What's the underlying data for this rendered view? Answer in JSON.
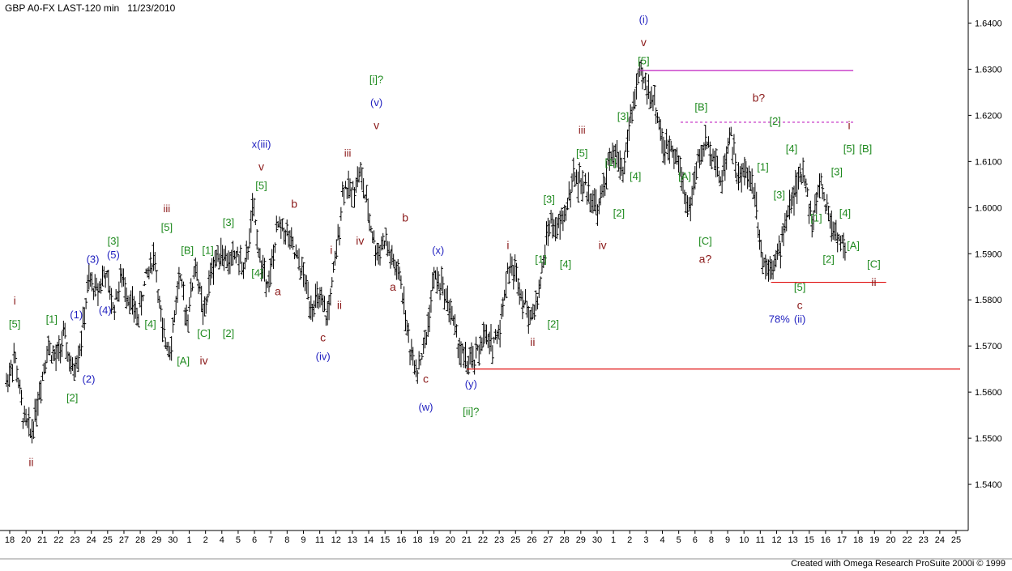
{
  "header": {
    "title": "GBP A0-FX LAST-120 min   11/23/2010"
  },
  "footer": {
    "credit": "Created with Omega Research ProSuite 2000i © 1999"
  },
  "colors": {
    "blue": "#1f1fbf",
    "green": "#1f8a1f",
    "darkred": "#8b1a1a",
    "red": "#e01010",
    "magenta": "#c020c0",
    "bars": "#000000"
  },
  "chart_data": {
    "type": "ohlc-bar",
    "symbol": "GBP A0-FX",
    "interval": "120 min",
    "date": "11/23/2010",
    "ylim": [
      1.53,
      1.645
    ],
    "y_ticks": [
      "1.6400",
      "1.6300",
      "1.6200",
      "1.6100",
      "1.6000",
      "1.5900",
      "1.5800",
      "1.5700",
      "1.5600",
      "1.5500",
      "1.5400"
    ],
    "x_ticks": [
      "18",
      "20",
      "21",
      "22",
      "23",
      "24",
      "25",
      "27",
      "28",
      "29",
      "30",
      "1",
      "2",
      "4",
      "5",
      "6",
      "7",
      "8",
      "9",
      "11",
      "12",
      "13",
      "14",
      "15",
      "16",
      "18",
      "19",
      "20",
      "21",
      "22",
      "23",
      "25",
      "26",
      "27",
      "28",
      "29",
      "30",
      "1",
      "2",
      "3",
      "4",
      "5",
      "6",
      "8",
      "9",
      "10",
      "11",
      "12",
      "13",
      "15",
      "16",
      "17",
      "18",
      "19",
      "20",
      "22",
      "23",
      "24",
      "25"
    ],
    "price_path": [
      [
        0,
        1.562
      ],
      [
        1,
        1.568
      ],
      [
        2,
        1.555
      ],
      [
        3,
        1.551
      ],
      [
        4,
        1.56
      ],
      [
        5,
        1.57
      ],
      [
        6,
        1.567
      ],
      [
        7,
        1.572
      ],
      [
        8,
        1.564
      ],
      [
        9,
        1.57
      ],
      [
        10,
        1.584
      ],
      [
        11,
        1.582
      ],
      [
        12,
        1.586
      ],
      [
        13,
        1.578
      ],
      [
        14,
        1.585
      ],
      [
        15,
        1.58
      ],
      [
        16,
        1.576
      ],
      [
        17,
        1.585
      ],
      [
        18,
        1.59
      ],
      [
        19,
        1.572
      ],
      [
        20,
        1.57
      ],
      [
        21,
        1.585
      ],
      [
        22,
        1.576
      ],
      [
        23,
        1.588
      ],
      [
        24,
        1.576
      ],
      [
        25,
        1.587
      ],
      [
        26,
        1.591
      ],
      [
        27,
        1.588
      ],
      [
        28,
        1.59
      ],
      [
        29,
        1.586
      ],
      [
        30,
        1.6
      ],
      [
        31,
        1.587
      ],
      [
        32,
        1.584
      ],
      [
        33,
        1.596
      ],
      [
        34,
        1.595
      ],
      [
        35,
        1.59
      ],
      [
        36,
        1.586
      ],
      [
        37,
        1.579
      ],
      [
        38,
        1.58
      ],
      [
        39,
        1.576
      ],
      [
        40,
        1.588
      ],
      [
        41,
        1.605
      ],
      [
        42,
        1.603
      ],
      [
        43,
        1.608
      ],
      [
        44,
        1.599
      ],
      [
        45,
        1.59
      ],
      [
        46,
        1.593
      ],
      [
        47,
        1.588
      ],
      [
        48,
        1.584
      ],
      [
        49,
        1.57
      ],
      [
        50,
        1.565
      ],
      [
        51,
        1.571
      ],
      [
        52,
        1.585
      ],
      [
        53,
        1.583
      ],
      [
        54,
        1.578
      ],
      [
        55,
        1.57
      ],
      [
        56,
        1.566
      ],
      [
        57,
        1.567
      ],
      [
        58,
        1.572
      ],
      [
        59,
        1.57
      ],
      [
        60,
        1.574
      ],
      [
        61,
        1.587
      ],
      [
        62,
        1.586
      ],
      [
        63,
        1.579
      ],
      [
        64,
        1.576
      ],
      [
        65,
        1.584
      ],
      [
        66,
        1.597
      ],
      [
        67,
        1.595
      ],
      [
        68,
        1.599
      ],
      [
        69,
        1.607
      ],
      [
        70,
        1.605
      ],
      [
        71,
        1.603
      ],
      [
        72,
        1.599
      ],
      [
        73,
        1.608
      ],
      [
        74,
        1.612
      ],
      [
        75,
        1.608
      ],
      [
        76,
        1.62
      ],
      [
        77,
        1.629
      ],
      [
        78,
        1.626
      ],
      [
        79,
        1.622
      ],
      [
        80,
        1.612
      ],
      [
        81,
        1.614
      ],
      [
        82,
        1.608
      ],
      [
        83,
        1.599
      ],
      [
        84,
        1.609
      ],
      [
        85,
        1.614
      ],
      [
        86,
        1.612
      ],
      [
        87,
        1.605
      ],
      [
        88,
        1.617
      ],
      [
        89,
        1.606
      ],
      [
        90,
        1.608
      ],
      [
        91,
        1.604
      ],
      [
        92,
        1.588
      ],
      [
        93,
        1.588
      ],
      [
        94,
        1.59
      ],
      [
        95,
        1.599
      ],
      [
        96,
        1.604
      ],
      [
        97,
        1.608
      ],
      [
        98,
        1.596
      ],
      [
        99,
        1.606
      ],
      [
        100,
        1.598
      ],
      [
        101,
        1.594
      ],
      [
        102,
        1.591
      ]
    ],
    "horizontal_lines": [
      {
        "name": "high-line",
        "y": 1.6297,
        "x_from": 77,
        "x_to": 103,
        "color": "#c020c0",
        "dash": false
      },
      {
        "name": "b-line",
        "y": 1.6185,
        "x_from": 82,
        "x_to": 103,
        "color": "#c020c0",
        "dash": true
      },
      {
        "name": "support-line",
        "y": 1.565,
        "x_from": 56,
        "x_to": 116,
        "color": "#e01010",
        "dash": false
      },
      {
        "name": "ii-line",
        "y": 1.5838,
        "x_from": 93,
        "x_to": 107,
        "color": "#e01010",
        "dash": false
      }
    ],
    "annotations": [
      {
        "text": "i",
        "x": 1,
        "y": 1.579,
        "color": "darkred"
      },
      {
        "text": "[5]",
        "x": 1,
        "y": 1.574,
        "color": "green"
      },
      {
        "text": "ii",
        "x": 3,
        "y": 1.544,
        "color": "darkred"
      },
      {
        "text": "[1]",
        "x": 5.5,
        "y": 1.575,
        "color": "green"
      },
      {
        "text": "[2]",
        "x": 8,
        "y": 1.558,
        "color": "green"
      },
      {
        "text": "(1)",
        "x": 8.5,
        "y": 1.576,
        "color": "blue"
      },
      {
        "text": "(2)",
        "x": 10,
        "y": 1.562,
        "color": "blue"
      },
      {
        "text": "(3)",
        "x": 10.5,
        "y": 1.588,
        "color": "blue"
      },
      {
        "text": "(4)",
        "x": 12,
        "y": 1.577,
        "color": "blue"
      },
      {
        "text": "[3]",
        "x": 13,
        "y": 1.592,
        "color": "green"
      },
      {
        "text": "(5)",
        "x": 13,
        "y": 1.589,
        "color": "blue"
      },
      {
        "text": "[4]",
        "x": 17.5,
        "y": 1.574,
        "color": "green"
      },
      {
        "text": "iii",
        "x": 19.5,
        "y": 1.599,
        "color": "darkred"
      },
      {
        "text": "[5]",
        "x": 19.5,
        "y": 1.595,
        "color": "green"
      },
      {
        "text": "[B]",
        "x": 22,
        "y": 1.59,
        "color": "green"
      },
      {
        "text": "[A]",
        "x": 21.5,
        "y": 1.566,
        "color": "green"
      },
      {
        "text": "[C]",
        "x": 24,
        "y": 1.572,
        "color": "green"
      },
      {
        "text": "iv",
        "x": 24,
        "y": 1.566,
        "color": "darkred"
      },
      {
        "text": "[1]",
        "x": 24.5,
        "y": 1.59,
        "color": "green"
      },
      {
        "text": "[3]",
        "x": 27,
        "y": 1.596,
        "color": "green"
      },
      {
        "text": "[2]",
        "x": 27,
        "y": 1.572,
        "color": "green"
      },
      {
        "text": "[4]",
        "x": 30.5,
        "y": 1.585,
        "color": "green"
      },
      {
        "text": "x(iii)",
        "x": 31,
        "y": 1.613,
        "color": "blue"
      },
      {
        "text": "v",
        "x": 31,
        "y": 1.608,
        "color": "darkred"
      },
      {
        "text": "[5]",
        "x": 31,
        "y": 1.604,
        "color": "green"
      },
      {
        "text": "a",
        "x": 33,
        "y": 1.581,
        "color": "darkred"
      },
      {
        "text": "b",
        "x": 35,
        "y": 1.6,
        "color": "darkred"
      },
      {
        "text": "c",
        "x": 38.5,
        "y": 1.571,
        "color": "darkred"
      },
      {
        "text": "(iv)",
        "x": 38.5,
        "y": 1.567,
        "color": "blue"
      },
      {
        "text": "i",
        "x": 39.5,
        "y": 1.59,
        "color": "darkred"
      },
      {
        "text": "ii",
        "x": 40.5,
        "y": 1.578,
        "color": "darkred"
      },
      {
        "text": "iii",
        "x": 41.5,
        "y": 1.611,
        "color": "darkred"
      },
      {
        "text": "iv",
        "x": 43,
        "y": 1.592,
        "color": "darkred"
      },
      {
        "text": "[i]?",
        "x": 45,
        "y": 1.627,
        "color": "green"
      },
      {
        "text": "(v)",
        "x": 45,
        "y": 1.622,
        "color": "blue"
      },
      {
        "text": "v",
        "x": 45,
        "y": 1.617,
        "color": "darkred"
      },
      {
        "text": "b",
        "x": 48.5,
        "y": 1.597,
        "color": "darkred"
      },
      {
        "text": "a",
        "x": 47,
        "y": 1.582,
        "color": "darkred"
      },
      {
        "text": "(x)",
        "x": 52.5,
        "y": 1.59,
        "color": "blue"
      },
      {
        "text": "c",
        "x": 51,
        "y": 1.562,
        "color": "darkred"
      },
      {
        "text": "(w)",
        "x": 51,
        "y": 1.556,
        "color": "blue"
      },
      {
        "text": "(y)",
        "x": 56.5,
        "y": 1.561,
        "color": "blue"
      },
      {
        "text": "[ii]?",
        "x": 56.5,
        "y": 1.555,
        "color": "green"
      },
      {
        "text": "i",
        "x": 61,
        "y": 1.591,
        "color": "darkred"
      },
      {
        "text": "ii",
        "x": 64,
        "y": 1.57,
        "color": "darkred"
      },
      {
        "text": "[1]",
        "x": 65,
        "y": 1.588,
        "color": "green"
      },
      {
        "text": "[2]",
        "x": 66.5,
        "y": 1.574,
        "color": "green"
      },
      {
        "text": "[3]",
        "x": 66,
        "y": 1.601,
        "color": "green"
      },
      {
        "text": "[4]",
        "x": 68,
        "y": 1.587,
        "color": "green"
      },
      {
        "text": "iii",
        "x": 70,
        "y": 1.616,
        "color": "darkred"
      },
      {
        "text": "[5]",
        "x": 70,
        "y": 1.611,
        "color": "green"
      },
      {
        "text": "[1]",
        "x": 73.5,
        "y": 1.609,
        "color": "green"
      },
      {
        "text": "[2]",
        "x": 74.5,
        "y": 1.598,
        "color": "green"
      },
      {
        "text": "iv",
        "x": 72.5,
        "y": 1.591,
        "color": "darkred"
      },
      {
        "text": "[3]",
        "x": 75,
        "y": 1.619,
        "color": "green"
      },
      {
        "text": "[4]",
        "x": 76.5,
        "y": 1.606,
        "color": "green"
      },
      {
        "text": "(i)",
        "x": 77.5,
        "y": 1.64,
        "color": "blue"
      },
      {
        "text": "v",
        "x": 77.5,
        "y": 1.635,
        "color": "darkred"
      },
      {
        "text": "[5]",
        "x": 77.5,
        "y": 1.631,
        "color": "green"
      },
      {
        "text": "[B]",
        "x": 84.5,
        "y": 1.621,
        "color": "green"
      },
      {
        "text": "[A]",
        "x": 82.5,
        "y": 1.606,
        "color": "green"
      },
      {
        "text": "[C]",
        "x": 85,
        "y": 1.592,
        "color": "green"
      },
      {
        "text": "a?",
        "x": 85,
        "y": 1.588,
        "color": "darkred"
      },
      {
        "text": "b?",
        "x": 91.5,
        "y": 1.623,
        "color": "darkred"
      },
      {
        "text": "[1]",
        "x": 92,
        "y": 1.608,
        "color": "green"
      },
      {
        "text": "[2]",
        "x": 93.5,
        "y": 1.618,
        "color": "green"
      },
      {
        "text": "[3]",
        "x": 94,
        "y": 1.602,
        "color": "green"
      },
      {
        "text": "[4]",
        "x": 95.5,
        "y": 1.612,
        "color": "green"
      },
      {
        "text": "[5]",
        "x": 96.5,
        "y": 1.582,
        "color": "green"
      },
      {
        "text": "c",
        "x": 96.5,
        "y": 1.578,
        "color": "darkred"
      },
      {
        "text": "78%",
        "x": 94,
        "y": 1.575,
        "color": "blue"
      },
      {
        "text": "(ii)",
        "x": 96.5,
        "y": 1.575,
        "color": "blue"
      },
      {
        "text": "[1]",
        "x": 98.5,
        "y": 1.597,
        "color": "green"
      },
      {
        "text": "[2]",
        "x": 100,
        "y": 1.588,
        "color": "green"
      },
      {
        "text": "[3]",
        "x": 101,
        "y": 1.607,
        "color": "green"
      },
      {
        "text": "[4]",
        "x": 102,
        "y": 1.598,
        "color": "green"
      },
      {
        "text": "i",
        "x": 102.5,
        "y": 1.617,
        "color": "darkred"
      },
      {
        "text": "[5]",
        "x": 102.5,
        "y": 1.612,
        "color": "green"
      },
      {
        "text": "[B]",
        "x": 104.5,
        "y": 1.612,
        "color": "green"
      },
      {
        "text": "[A]",
        "x": 103,
        "y": 1.591,
        "color": "green"
      },
      {
        "text": "[C]",
        "x": 105.5,
        "y": 1.587,
        "color": "green"
      },
      {
        "text": "ii",
        "x": 105.5,
        "y": 1.583,
        "color": "darkred"
      }
    ]
  }
}
